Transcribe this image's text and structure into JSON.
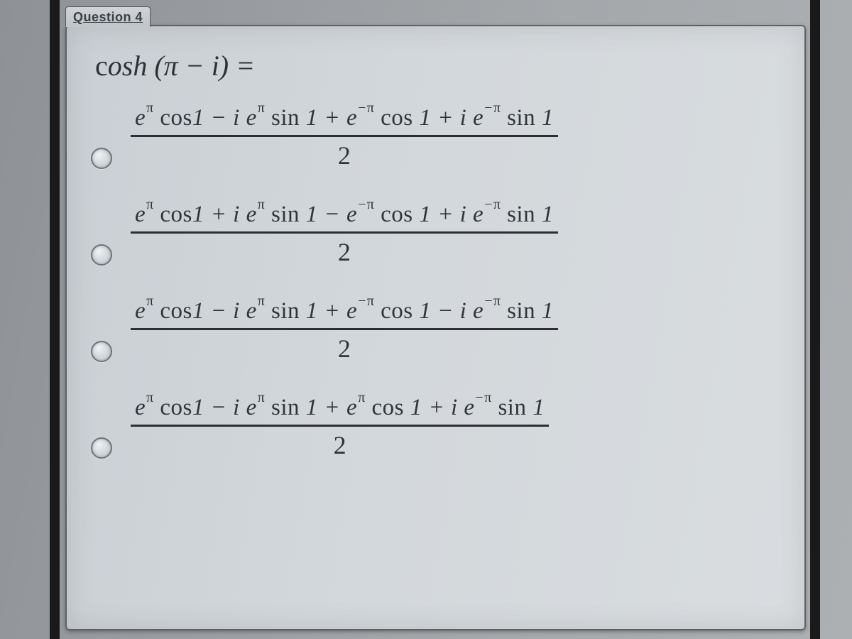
{
  "question_tag": "Question 4",
  "prompt_html": "<span class='cosh-c'>c</span><span class='cosh-rest'>osh</span> (π − i) =",
  "denominator": "2",
  "options": [
    {
      "num_html": "e<sup>π</sup> <span class='rom'>cos</span>1 − i e<sup>π</sup> <span class='rom'>sin</span> 1 + e<sup><span class='neg'>−</span>π</sup> <span class='rom'>cos</span> 1 + i e<sup><span class='neg'>−</span>π</sup> <span class='rom'>sin</span> 1"
    },
    {
      "num_html": "e<sup>π</sup> <span class='rom'>cos</span>1 + i e<sup>π</sup> <span class='rom'>sin</span> 1 − e<sup><span class='neg'>−</span>π</sup> <span class='rom'>cos</span> 1 + i e<sup><span class='neg'>−</span>π</sup> <span class='rom'>sin</span> 1"
    },
    {
      "num_html": "e<sup>π</sup> <span class='rom'>cos</span>1 − i e<sup>π</sup> <span class='rom'>sin</span> 1 + e<sup><span class='neg'>−</span>π</sup> <span class='rom'>cos</span> 1 − i e<sup><span class='neg'>−</span>π</sup> <span class='rom'>sin</span> 1"
    },
    {
      "num_html": "e<sup>π</sup> <span class='rom'>cos</span>1 − i e<sup>π</sup> <span class='rom'>sin</span> 1 + e<sup>π</sup> <span class='rom'>cos</span> 1 + i e<sup><span class='neg'>−</span>π</sup> <span class='rom'>sin</span> 1"
    }
  ]
}
